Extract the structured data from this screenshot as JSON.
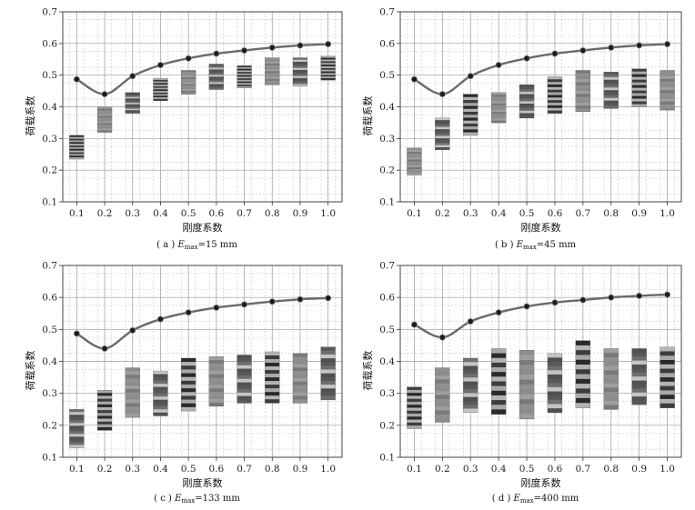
{
  "chart_data": [
    {
      "type": "line+bands",
      "caption": {
        "pre": "( a ) ",
        "var": "E",
        "sub": "max",
        "post": "=15 mm"
      },
      "xlabel": "刚度系数",
      "ylabel": "荷载系数",
      "xticks": [
        "0.1",
        "0.2",
        "0.3",
        "0.4",
        "0.5",
        "0.6",
        "0.7",
        "0.8",
        "0.9",
        "1.0"
      ],
      "yticks": [
        "0.1",
        "0.2",
        "0.3",
        "0.4",
        "0.5",
        "0.6",
        "0.7"
      ],
      "ylim": [
        0.1,
        0.7
      ],
      "x": [
        0.1,
        0.2,
        0.3,
        0.4,
        0.5,
        0.6,
        0.7,
        0.8,
        0.9,
        1.0
      ],
      "line": [
        0.487,
        0.44,
        0.497,
        0.532,
        0.553,
        0.568,
        0.578,
        0.587,
        0.594,
        0.598
      ],
      "bands": [
        [
          0.235,
          0.31
        ],
        [
          0.32,
          0.4
        ],
        [
          0.38,
          0.445
        ],
        [
          0.42,
          0.49
        ],
        [
          0.44,
          0.515
        ],
        [
          0.455,
          0.535
        ],
        [
          0.46,
          0.53
        ],
        [
          0.47,
          0.555
        ],
        [
          0.465,
          0.555
        ],
        [
          0.485,
          0.56
        ]
      ]
    },
    {
      "type": "line+bands",
      "caption": {
        "pre": "( b ) ",
        "var": "E",
        "sub": "max",
        "post": "=45 mm"
      },
      "xlabel": "刚度系数",
      "ylabel": "荷载系数",
      "xticks": [
        "0.1",
        "0.2",
        "0.3",
        "0.4",
        "0.5",
        "0.6",
        "0.7",
        "0.8",
        "0.9",
        "1.0"
      ],
      "yticks": [
        "0.1",
        "0.2",
        "0.3",
        "0.4",
        "0.5",
        "0.6",
        "0.7"
      ],
      "ylim": [
        0.1,
        0.7
      ],
      "x": [
        0.1,
        0.2,
        0.3,
        0.4,
        0.5,
        0.6,
        0.7,
        0.8,
        0.9,
        1.0
      ],
      "line": [
        0.487,
        0.44,
        0.497,
        0.532,
        0.553,
        0.568,
        0.578,
        0.587,
        0.594,
        0.598
      ],
      "bands": [
        [
          0.185,
          0.27
        ],
        [
          0.265,
          0.365
        ],
        [
          0.31,
          0.44
        ],
        [
          0.35,
          0.445
        ],
        [
          0.365,
          0.47
        ],
        [
          0.38,
          0.495
        ],
        [
          0.385,
          0.515
        ],
        [
          0.395,
          0.51
        ],
        [
          0.4,
          0.52
        ],
        [
          0.39,
          0.515
        ]
      ]
    },
    {
      "type": "line+bands",
      "caption": {
        "pre": "( c ) ",
        "var": "E",
        "sub": "max",
        "post": "=133 mm"
      },
      "xlabel": "刚度系数",
      "ylabel": "荷载系数",
      "xticks": [
        "0.1",
        "0.2",
        "0.3",
        "0.4",
        "0.5",
        "0.6",
        "0.7",
        "0.8",
        "0.9",
        "1.0"
      ],
      "yticks": [
        "0.1",
        "0.2",
        "0.3",
        "0.4",
        "0.5",
        "0.6",
        "0.7"
      ],
      "ylim": [
        0.1,
        0.7
      ],
      "x": [
        0.1,
        0.2,
        0.3,
        0.4,
        0.5,
        0.6,
        0.7,
        0.8,
        0.9,
        1.0
      ],
      "line": [
        0.487,
        0.44,
        0.497,
        0.532,
        0.553,
        0.568,
        0.578,
        0.587,
        0.594,
        0.598
      ],
      "bands": [
        [
          0.13,
          0.25
        ],
        [
          0.185,
          0.31
        ],
        [
          0.225,
          0.38
        ],
        [
          0.23,
          0.37
        ],
        [
          0.245,
          0.41
        ],
        [
          0.26,
          0.415
        ],
        [
          0.27,
          0.42
        ],
        [
          0.27,
          0.43
        ],
        [
          0.27,
          0.425
        ],
        [
          0.28,
          0.445
        ]
      ]
    },
    {
      "type": "line+bands",
      "caption": {
        "pre": "( d ) ",
        "var": "E",
        "sub": "max",
        "post": "=400 mm"
      },
      "xlabel": "刚度系数",
      "ylabel": "荷载系数",
      "xticks": [
        "0.1",
        "0.2",
        "0.3",
        "0.4",
        "0.5",
        "0.6",
        "0.7",
        "0.8",
        "0.9",
        "1.0"
      ],
      "yticks": [
        "0.1",
        "0.2",
        "0.3",
        "0.4",
        "0.5",
        "0.6",
        "0.7"
      ],
      "ylim": [
        0.1,
        0.7
      ],
      "x": [
        0.1,
        0.2,
        0.3,
        0.4,
        0.5,
        0.6,
        0.7,
        0.8,
        0.9,
        1.0
      ],
      "line": [
        0.515,
        0.475,
        0.525,
        0.553,
        0.572,
        0.584,
        0.592,
        0.6,
        0.605,
        0.609
      ],
      "bands": [
        [
          0.19,
          0.32
        ],
        [
          0.21,
          0.38
        ],
        [
          0.24,
          0.41
        ],
        [
          0.235,
          0.44
        ],
        [
          0.22,
          0.435
        ],
        [
          0.24,
          0.425
        ],
        [
          0.255,
          0.465
        ],
        [
          0.25,
          0.44
        ],
        [
          0.265,
          0.44
        ],
        [
          0.255,
          0.445
        ]
      ]
    }
  ]
}
